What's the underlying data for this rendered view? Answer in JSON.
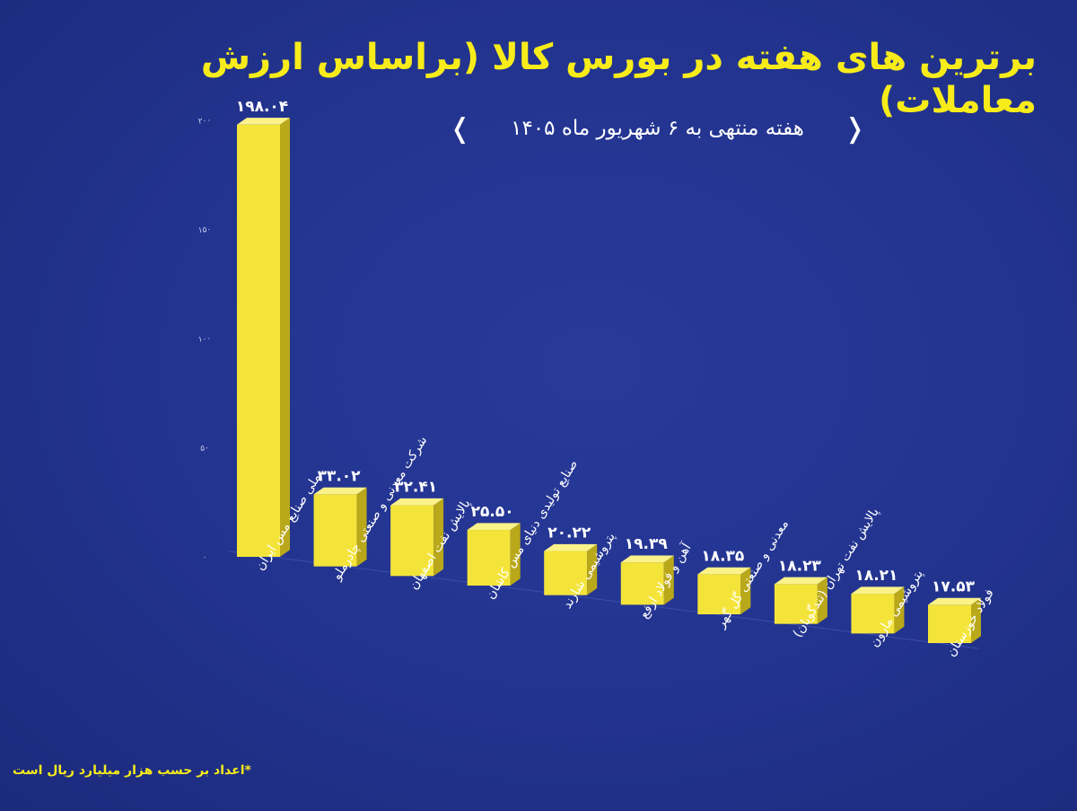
{
  "header": {
    "title": "برترین های هفته در بورس کالا (براساس ارزش معاملات)",
    "subtitle": "هفته منتهی به ۶ شهریور ماه ۱۴۰۵"
  },
  "footnote": "*اعداد بر حسب هزار میلیارد ریال است",
  "colors": {
    "background": "#22338e",
    "bar_front": "#f4e43a",
    "bar_side": "#b9a81a",
    "bar_top": "#fbf28a",
    "title": "#f7ec1a"
  },
  "chart_data": {
    "type": "bar",
    "title": "برترین های هفته در بورس کالا (براساس ارزش معاملات)",
    "subtitle": "هفته منتهی به ۶ شهریور ماه ۱۴۰۵",
    "categories": [
      "ملی صنایع مس ایران",
      "شرکت معدنی و صنعتی چادرملو",
      "پالایش نفت اصفهان",
      "صنایع تولیدی دنیای مس کاشان",
      "پتروشیمی شازند",
      "آهن و فولاد ارفع",
      "معدنی و صنعتی گل گهر",
      "پالایش نفت تهران (تندگویان)",
      "پتروشیمی مارون",
      "فولاد خوزستان"
    ],
    "values": [
      198.04,
      33.02,
      32.41,
      25.5,
      20.22,
      19.39,
      18.35,
      18.23,
      18.21,
      17.53
    ],
    "value_labels": [
      "۱۹۸.۰۴",
      "۳۳.۰۲",
      "۳۲.۴۱",
      "۲۵.۵۰",
      "۲۰.۲۲",
      "۱۹.۳۹",
      "۱۸.۳۵",
      "۱۸.۲۳",
      "۱۸.۲۱",
      "۱۷.۵۳"
    ],
    "yticks": [
      0,
      50,
      100,
      150,
      200
    ],
    "ytick_labels": [
      "۰",
      "۵۰",
      "۱۰۰",
      "۱۵۰",
      "۲۰۰"
    ],
    "ylim": [
      0,
      200
    ],
    "grid": false,
    "legend": "none"
  }
}
